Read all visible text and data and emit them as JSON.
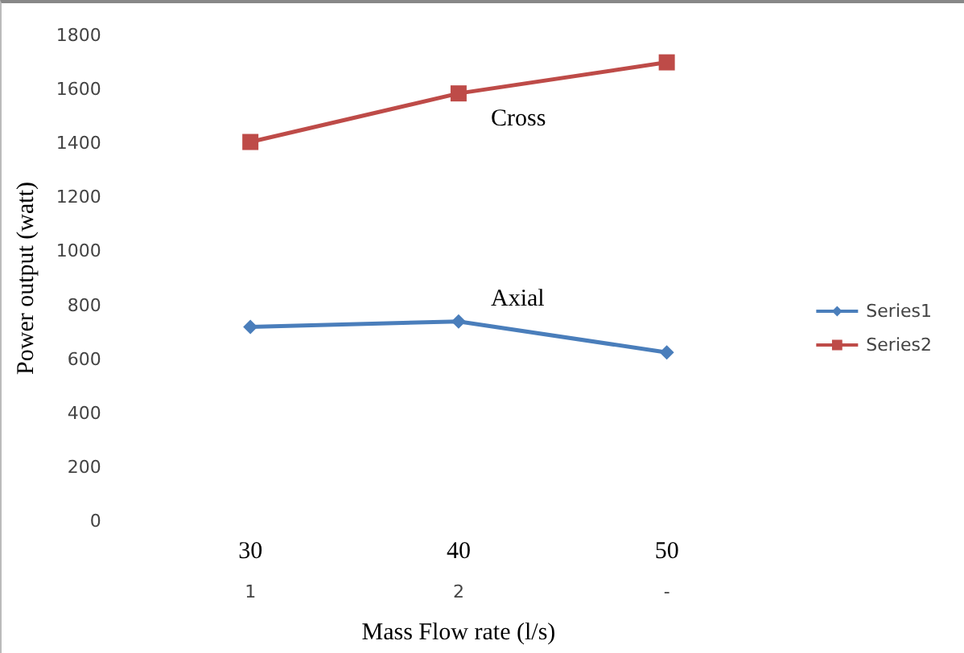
{
  "chart_data": {
    "type": "line",
    "xlabel": "Mass Flow rate (l/s)",
    "ylabel": "Power output (watt)",
    "categories": [
      "30\n1",
      "40\n2",
      "50\n-"
    ],
    "series": [
      {
        "name": "Series1",
        "color": "#4a7ebb",
        "marker": "diamond",
        "values": [
          720,
          740,
          625
        ]
      },
      {
        "name": "Series2",
        "color": "#be4b48",
        "marker": "square",
        "values": [
          1405,
          1585,
          1700
        ]
      }
    ],
    "ylim": [
      0,
      1800
    ],
    "yticks": [
      0,
      200,
      400,
      600,
      800,
      1000,
      1200,
      1400,
      1600,
      1800
    ],
    "annotations": [
      "Cross",
      "Axial"
    ],
    "legend": "right",
    "grid": false
  }
}
